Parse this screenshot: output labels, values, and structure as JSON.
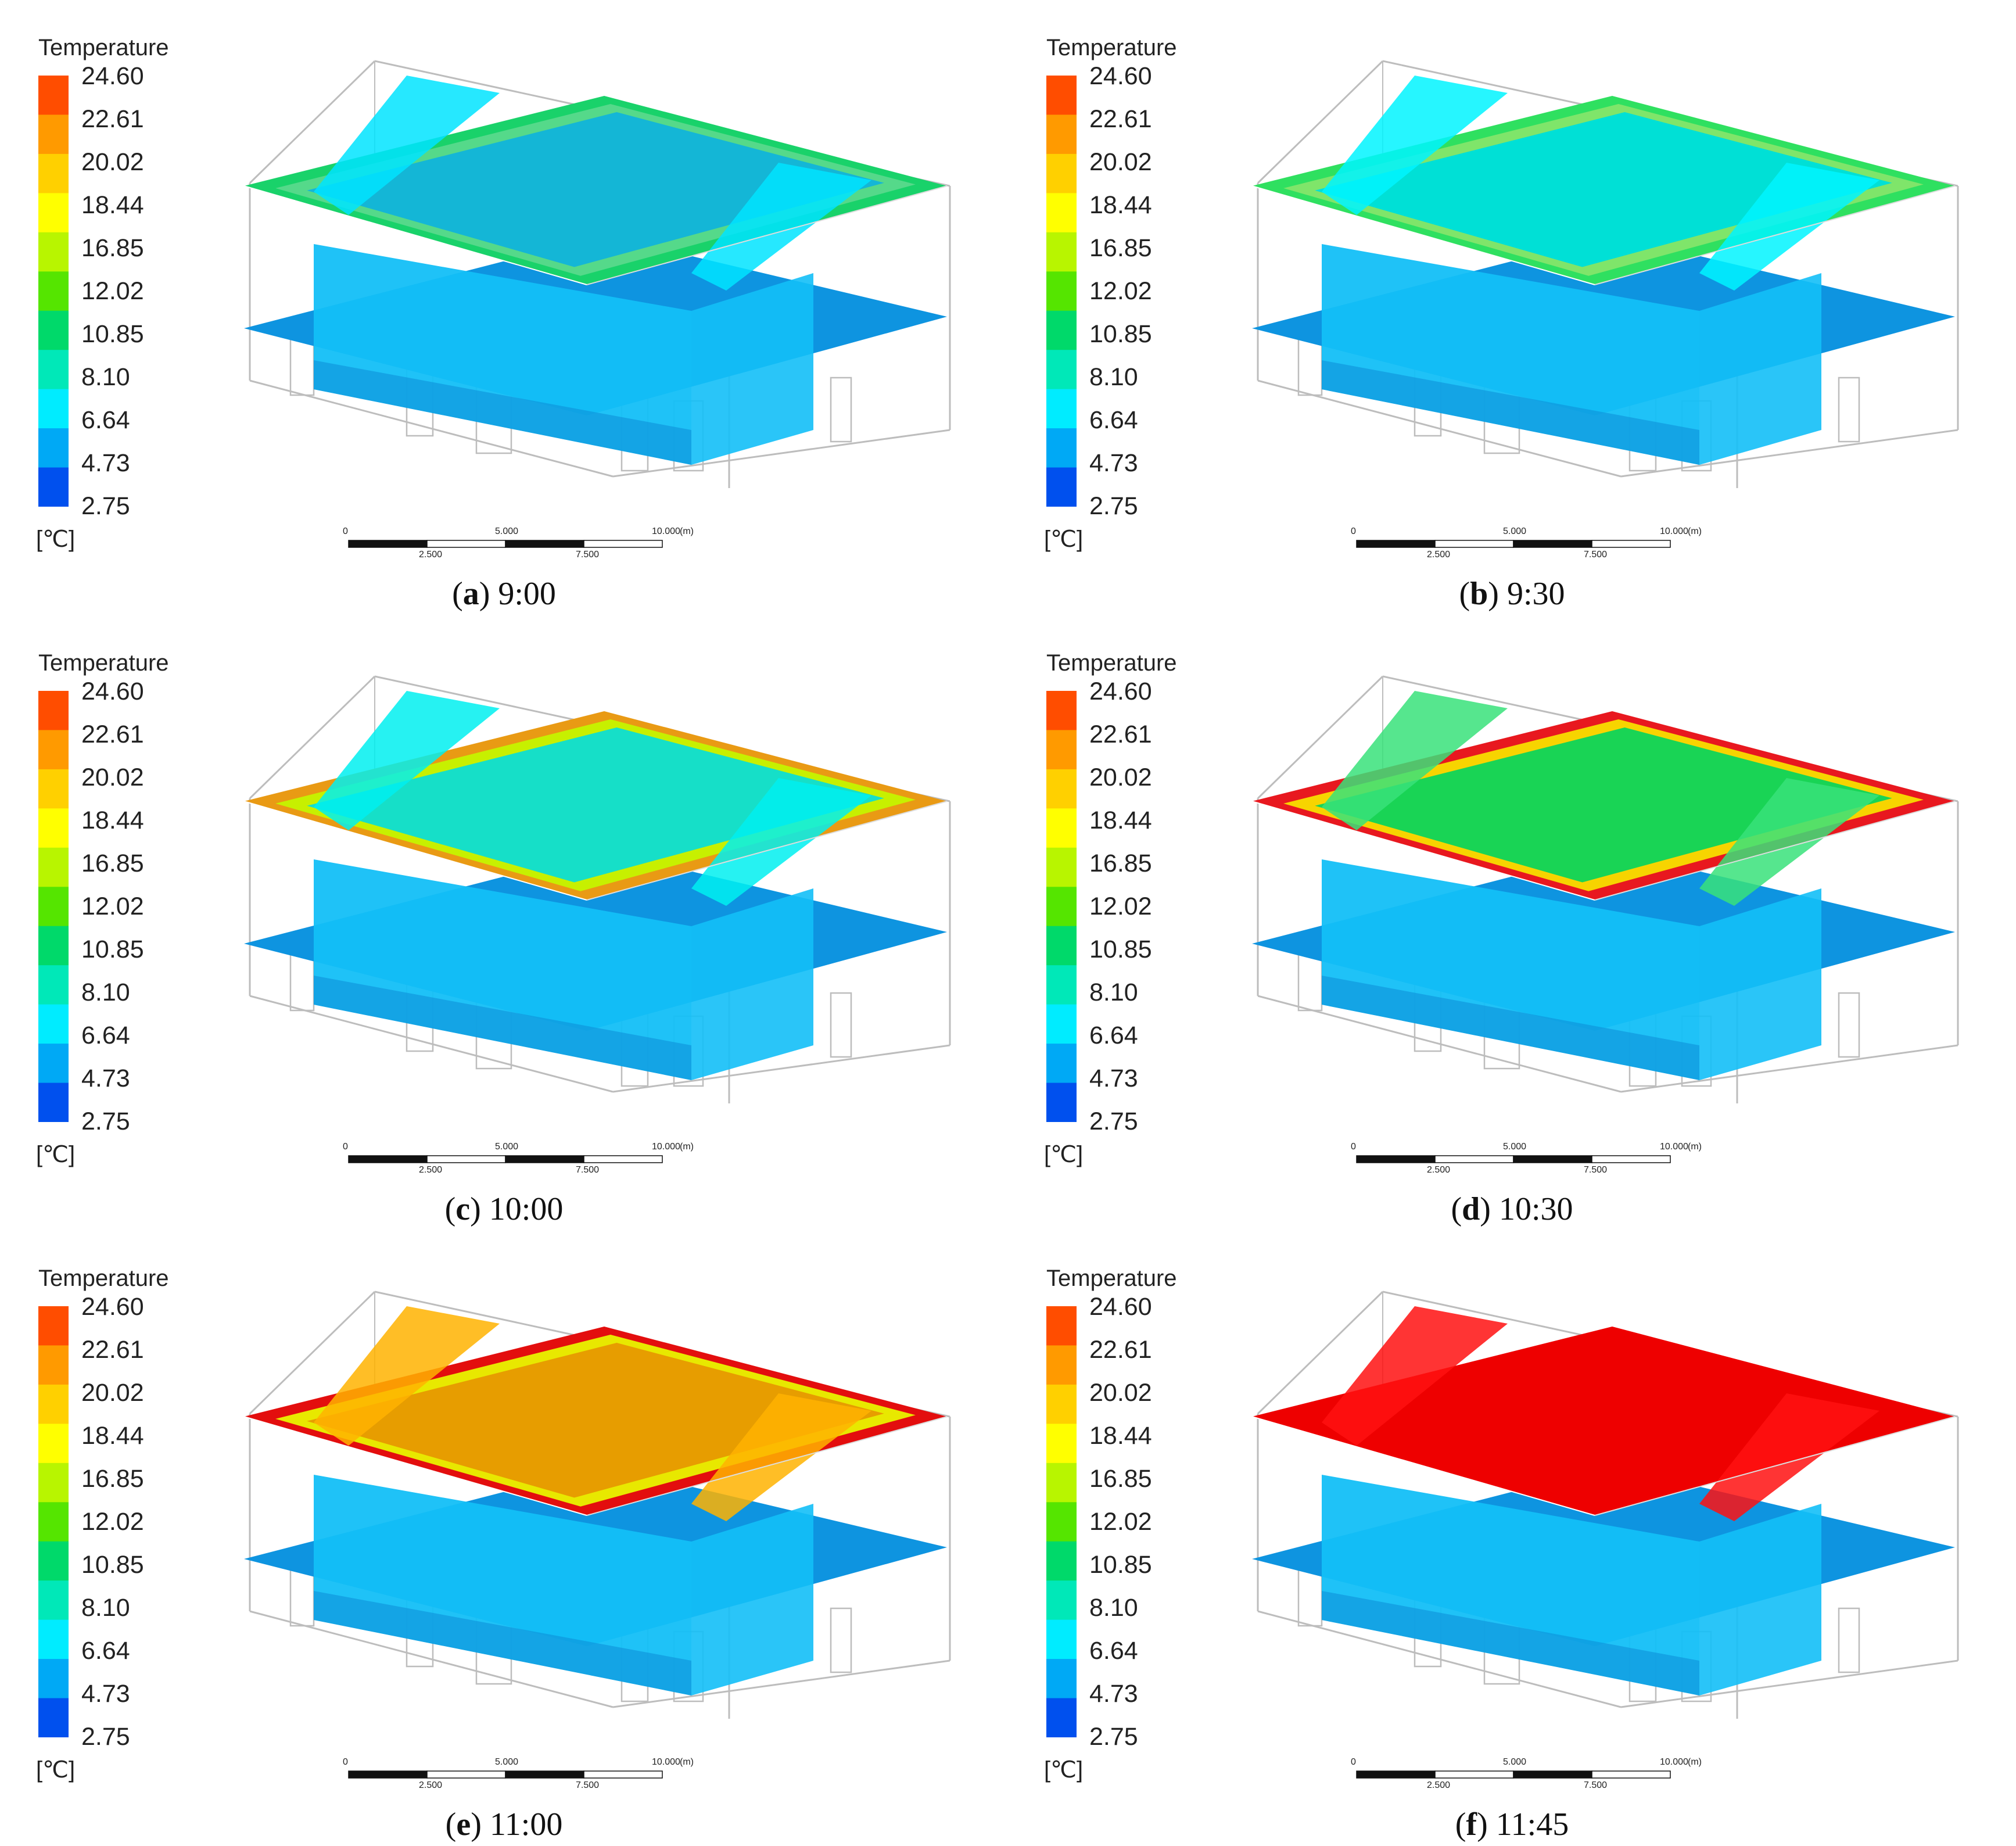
{
  "legend": {
    "title": "Temperature",
    "unit": "[℃]",
    "ticks": [
      "24.60",
      "22.61",
      "20.02",
      "18.44",
      "16.85",
      "12.02",
      "10.85",
      "8.10",
      "6.64",
      "4.73",
      "2.75"
    ],
    "band_colors": [
      "#ff4d00",
      "#ff9a00",
      "#ffd000",
      "#ffff00",
      "#b8f500",
      "#55e500",
      "#00d96a",
      "#00e8b8",
      "#00ecff",
      "#00a9f5",
      "#0050ee"
    ]
  },
  "scale_bar": {
    "labels_top": [
      "0",
      "5.000",
      "10.000",
      "(m)"
    ],
    "labels_bottom": [
      "2.500",
      "7.500"
    ]
  },
  "panels": [
    {
      "letter": "a",
      "time": "9:00",
      "roof_edge": "#19d26a",
      "roof_fill": "#14b6d6",
      "gable": "#00e4ff",
      "frame": "#55d98a"
    },
    {
      "letter": "b",
      "time": "9:30",
      "roof_edge": "#2fe060",
      "roof_fill": "#00e0d6",
      "gable": "#00f4ff",
      "frame": "#7fe56a"
    },
    {
      "letter": "c",
      "time": "10:00",
      "roof_edge": "#e99a14",
      "roof_fill": "#16dfc8",
      "gable": "#00f0f0",
      "frame": "#c7f000"
    },
    {
      "letter": "d",
      "time": "10:30",
      "roof_edge": "#e8181f",
      "roof_fill": "#19d455",
      "gable": "#38e27a",
      "frame": "#f7d400"
    },
    {
      "letter": "e",
      "time": "11:00",
      "roof_edge": "#e30e0e",
      "roof_fill": "#e79d00",
      "gable": "#ffb300",
      "frame": "#e8e800"
    },
    {
      "letter": "f",
      "time": "11:45",
      "roof_edge": "#ee0000",
      "roof_fill": "#ee0000",
      "gable": "#ff1010",
      "frame": "#ee0000"
    }
  ],
  "colors": {
    "wall": "#13bff7",
    "floor": "#0e94e0",
    "wireframe": "#bdbdbd"
  }
}
